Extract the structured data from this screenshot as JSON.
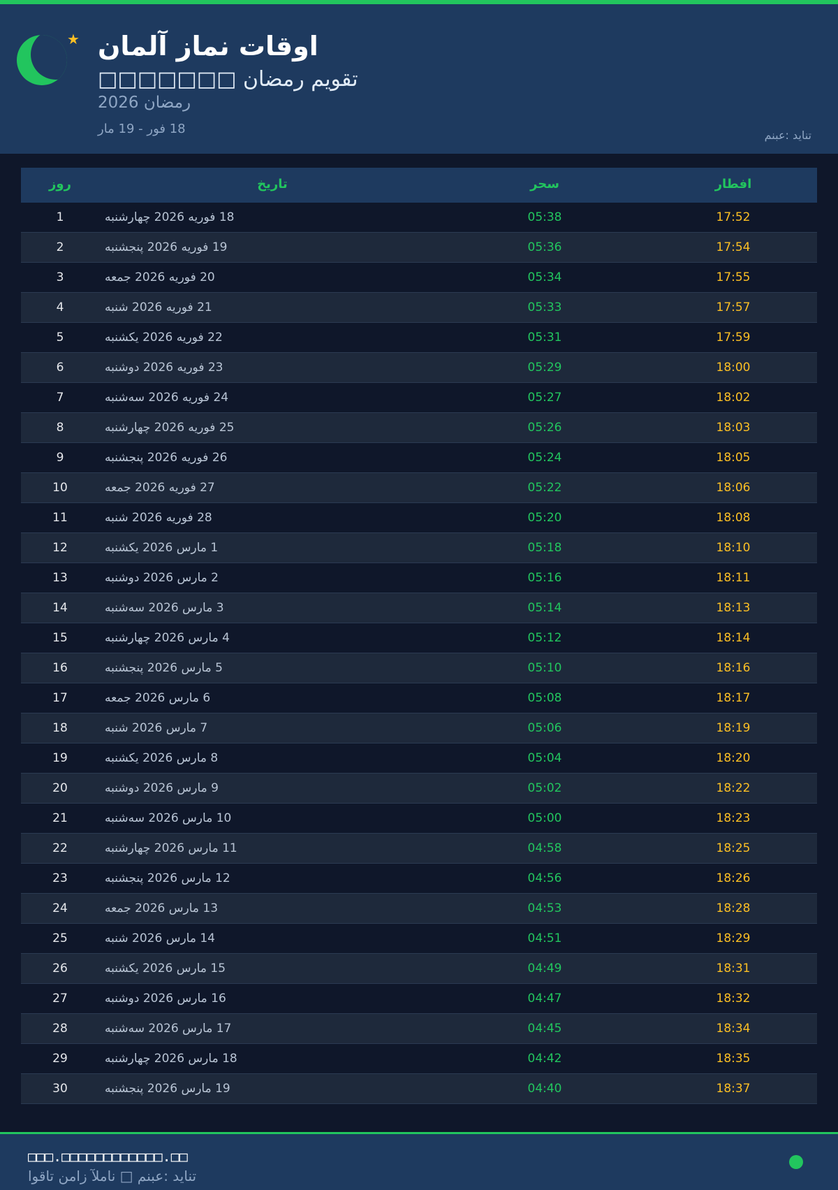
{
  "colors": {
    "accent": "#22c55e",
    "iftar": "#fbbf24",
    "header_bg": "#1e3a5f",
    "page_bg": "#0f172a"
  },
  "header": {
    "icons": [
      "crescent-moon-icon",
      "star-icon"
    ],
    "title": "اوقات نماز آلمان",
    "subtitle": "تقویم رمضان □□□□□□□",
    "year": "رمضان 2026",
    "range": "18 فور - 19 مار",
    "source": "منبع: دیانت"
  },
  "table": {
    "columns": {
      "day": "روز",
      "date": "تاریخ",
      "sahar": "سحر",
      "iftar": "افطار"
    },
    "rows": [
      {
        "day": "1",
        "date": "18 فوریه 2026 چهارشنبه",
        "sahar": "05:38",
        "iftar": "17:52"
      },
      {
        "day": "2",
        "date": "19 فوریه 2026 پنجشنبه",
        "sahar": "05:36",
        "iftar": "17:54"
      },
      {
        "day": "3",
        "date": "20 فوریه 2026 جمعه",
        "sahar": "05:34",
        "iftar": "17:55"
      },
      {
        "day": "4",
        "date": "21 فوریه 2026 شنبه",
        "sahar": "05:33",
        "iftar": "17:57"
      },
      {
        "day": "5",
        "date": "22 فوریه 2026 یکشنبه",
        "sahar": "05:31",
        "iftar": "17:59"
      },
      {
        "day": "6",
        "date": "23 فوریه 2026 دوشنبه",
        "sahar": "05:29",
        "iftar": "18:00"
      },
      {
        "day": "7",
        "date": "24 فوریه 2026 سه‌شنبه",
        "sahar": "05:27",
        "iftar": "18:02"
      },
      {
        "day": "8",
        "date": "25 فوریه 2026 چهارشنبه",
        "sahar": "05:26",
        "iftar": "18:03"
      },
      {
        "day": "9",
        "date": "26 فوریه 2026 پنجشنبه",
        "sahar": "05:24",
        "iftar": "18:05"
      },
      {
        "day": "10",
        "date": "27 فوریه 2026 جمعه",
        "sahar": "05:22",
        "iftar": "18:06"
      },
      {
        "day": "11",
        "date": "28 فوریه 2026 شنبه",
        "sahar": "05:20",
        "iftar": "18:08"
      },
      {
        "day": "12",
        "date": "1 مارس 2026 یکشنبه",
        "sahar": "05:18",
        "iftar": "18:10"
      },
      {
        "day": "13",
        "date": "2 مارس 2026 دوشنبه",
        "sahar": "05:16",
        "iftar": "18:11"
      },
      {
        "day": "14",
        "date": "3 مارس 2026 سه‌شنبه",
        "sahar": "05:14",
        "iftar": "18:13"
      },
      {
        "day": "15",
        "date": "4 مارس 2026 چهارشنبه",
        "sahar": "05:12",
        "iftar": "18:14"
      },
      {
        "day": "16",
        "date": "5 مارس 2026 پنجشنبه",
        "sahar": "05:10",
        "iftar": "18:16"
      },
      {
        "day": "17",
        "date": "6 مارس 2026 جمعه",
        "sahar": "05:08",
        "iftar": "18:17"
      },
      {
        "day": "18",
        "date": "7 مارس 2026 شنبه",
        "sahar": "05:06",
        "iftar": "18:19"
      },
      {
        "day": "19",
        "date": "8 مارس 2026 یکشنبه",
        "sahar": "05:04",
        "iftar": "18:20"
      },
      {
        "day": "20",
        "date": "9 مارس 2026 دوشنبه",
        "sahar": "05:02",
        "iftar": "18:22"
      },
      {
        "day": "21",
        "date": "10 مارس 2026 سه‌شنبه",
        "sahar": "05:00",
        "iftar": "18:23"
      },
      {
        "day": "22",
        "date": "11 مارس 2026 چهارشنبه",
        "sahar": "04:58",
        "iftar": "18:25"
      },
      {
        "day": "23",
        "date": "12 مارس 2026 پنجشنبه",
        "sahar": "04:56",
        "iftar": "18:26"
      },
      {
        "day": "24",
        "date": "13 مارس 2026 جمعه",
        "sahar": "04:53",
        "iftar": "18:28"
      },
      {
        "day": "25",
        "date": "14 مارس 2026 شنبه",
        "sahar": "04:51",
        "iftar": "18:29"
      },
      {
        "day": "26",
        "date": "15 مارس 2026 یکشنبه",
        "sahar": "04:49",
        "iftar": "18:31"
      },
      {
        "day": "27",
        "date": "16 مارس 2026 دوشنبه",
        "sahar": "04:47",
        "iftar": "18:32"
      },
      {
        "day": "28",
        "date": "17 مارس 2026 سه‌شنبه",
        "sahar": "04:45",
        "iftar": "18:34"
      },
      {
        "day": "29",
        "date": "18 مارس 2026 چهارشنبه",
        "sahar": "04:42",
        "iftar": "18:35"
      },
      {
        "day": "30",
        "date": "19 مارس 2026 پنجشنبه",
        "sahar": "04:40",
        "iftar": "18:37"
      }
    ]
  },
  "footer": {
    "site": "□□□.□□□□□□□□□□□□.□□",
    "text": "اوقات نماز آلمان □ منبع: دیانت",
    "status_icon": "status-dot-icon"
  }
}
